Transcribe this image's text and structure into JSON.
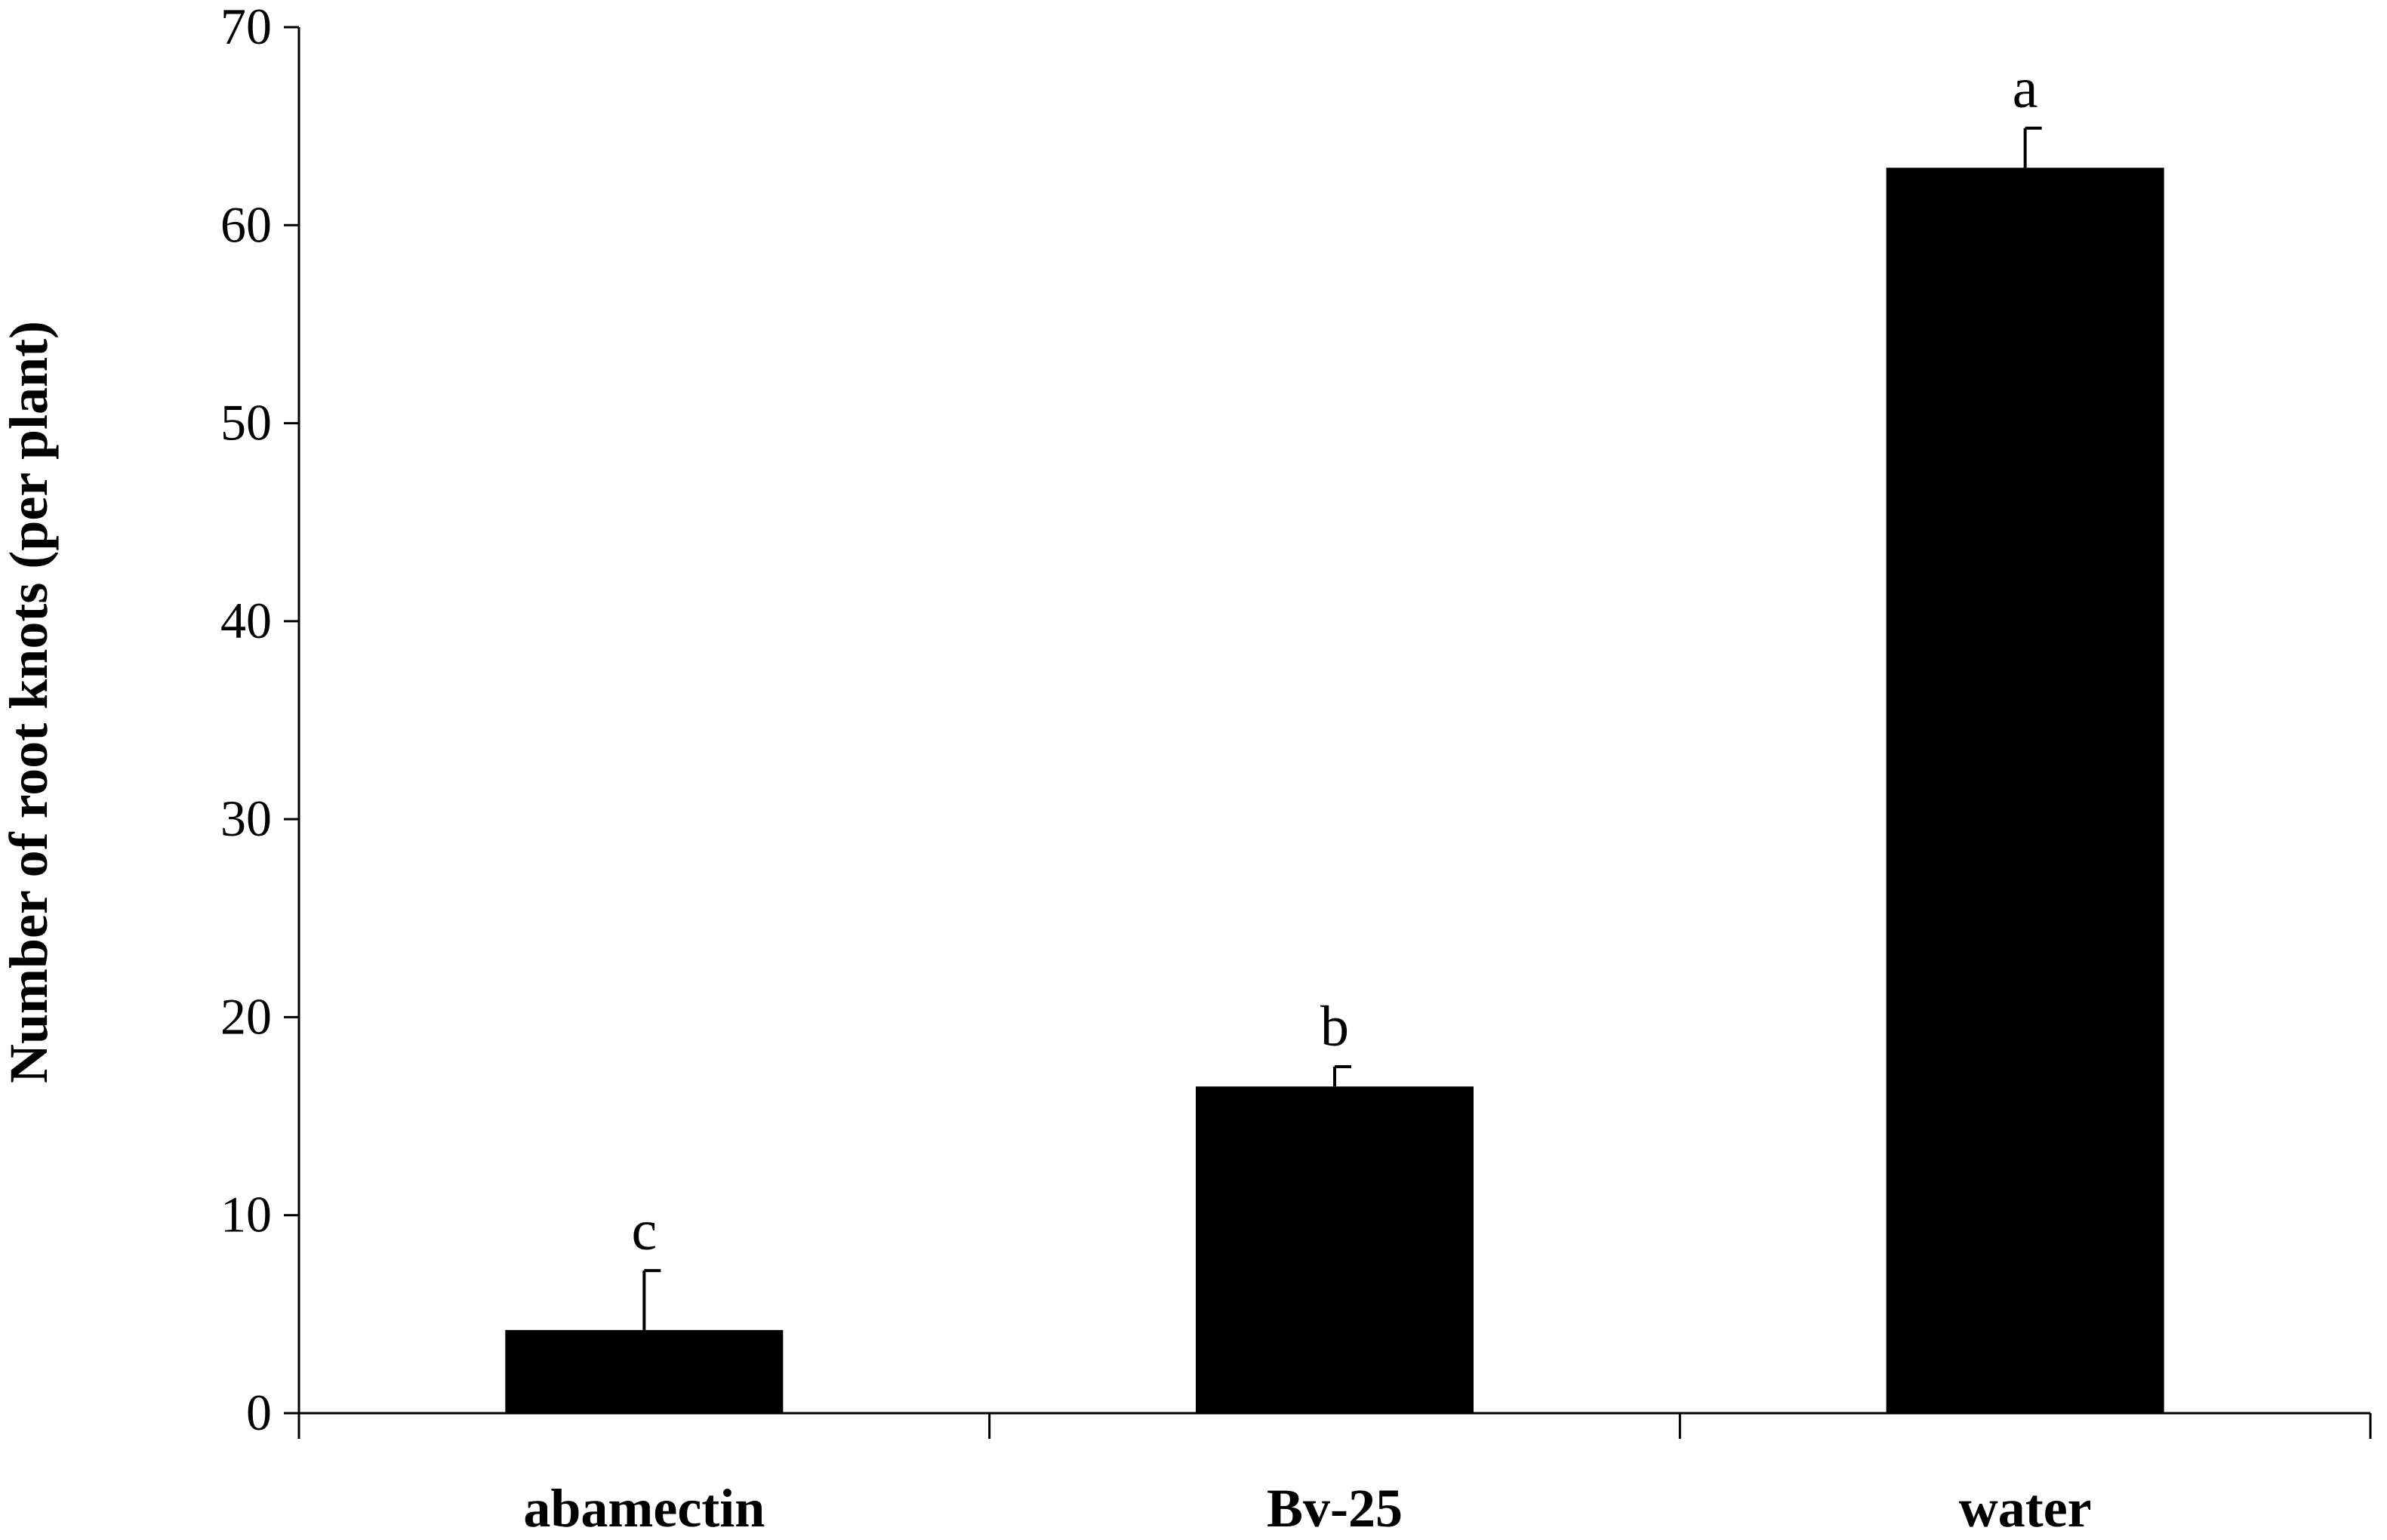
{
  "chart_data": {
    "type": "bar",
    "categories": [
      "abamectin",
      "Bv-25",
      "water"
    ],
    "series": [
      {
        "values": [
          4.2,
          16.5,
          62.9
        ],
        "error": [
          3.0,
          1.0,
          2.0
        ],
        "color": "#000000"
      }
    ],
    "annotations": [
      "c",
      "b",
      "a"
    ],
    "ylabel": "Number of root knots (per plant)",
    "xlabel": "",
    "title": "",
    "ylim": [
      0,
      70
    ],
    "yticks": [
      0,
      10,
      20,
      30,
      40,
      50,
      60,
      70
    ],
    "ytick_labels": [
      "0",
      "10",
      "20",
      "30",
      "40",
      "50",
      "60",
      "70"
    ],
    "grid": false,
    "legend": "none"
  }
}
